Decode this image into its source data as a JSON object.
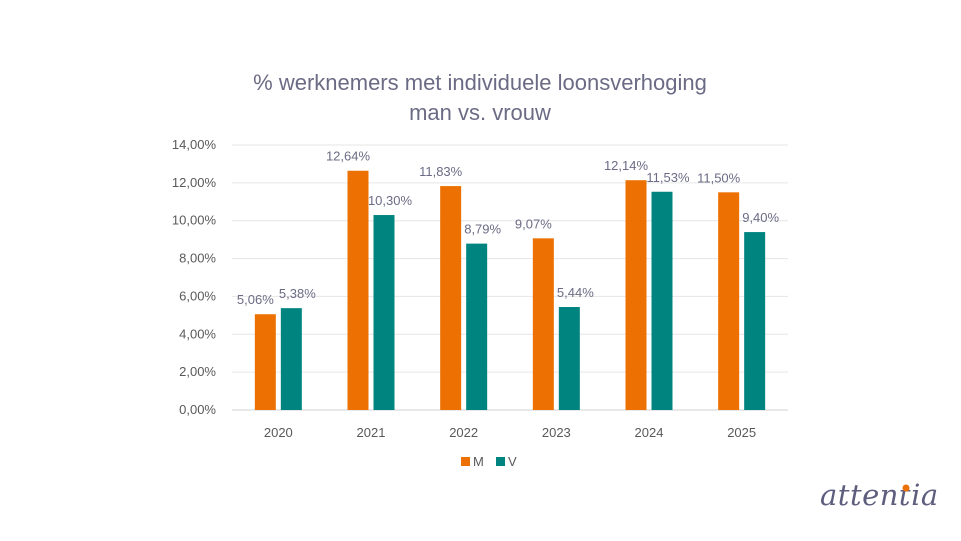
{
  "chart_data": {
    "type": "bar",
    "title": "% werknemers met individuele loonsverhoging",
    "subtitle": "man vs. vrouw",
    "categories": [
      "2020",
      "2021",
      "2022",
      "2023",
      "2024",
      "2025"
    ],
    "series": [
      {
        "name": "M",
        "color": "#ed7102",
        "values": [
          5.06,
          12.64,
          11.83,
          9.07,
          12.14,
          11.5
        ],
        "labels": [
          "5,06%",
          "12,64%",
          "11,83%",
          "9,07%",
          "12,14%",
          "11,50%"
        ]
      },
      {
        "name": "V",
        "color": "#00847f",
        "values": [
          5.38,
          10.3,
          8.79,
          5.44,
          11.53,
          9.4
        ],
        "labels": [
          "5,38%",
          "10,30%",
          "8,79%",
          "5,44%",
          "11,53%",
          "9,40%"
        ]
      }
    ],
    "ylim": [
      0,
      14
    ],
    "yticks": [
      0,
      2,
      4,
      6,
      8,
      10,
      12,
      14
    ],
    "ytick_labels": [
      "0,00%",
      "2,00%",
      "4,00%",
      "6,00%",
      "8,00%",
      "10,00%",
      "12,00%",
      "14,00%"
    ],
    "grid": true,
    "legend": "bottom-center"
  },
  "branding": {
    "logo_text": "attentia",
    "logo_color": "#5d5d7d",
    "logo_accent_color": "#ed7102",
    "logo_icon": "orange-dot-icon"
  }
}
